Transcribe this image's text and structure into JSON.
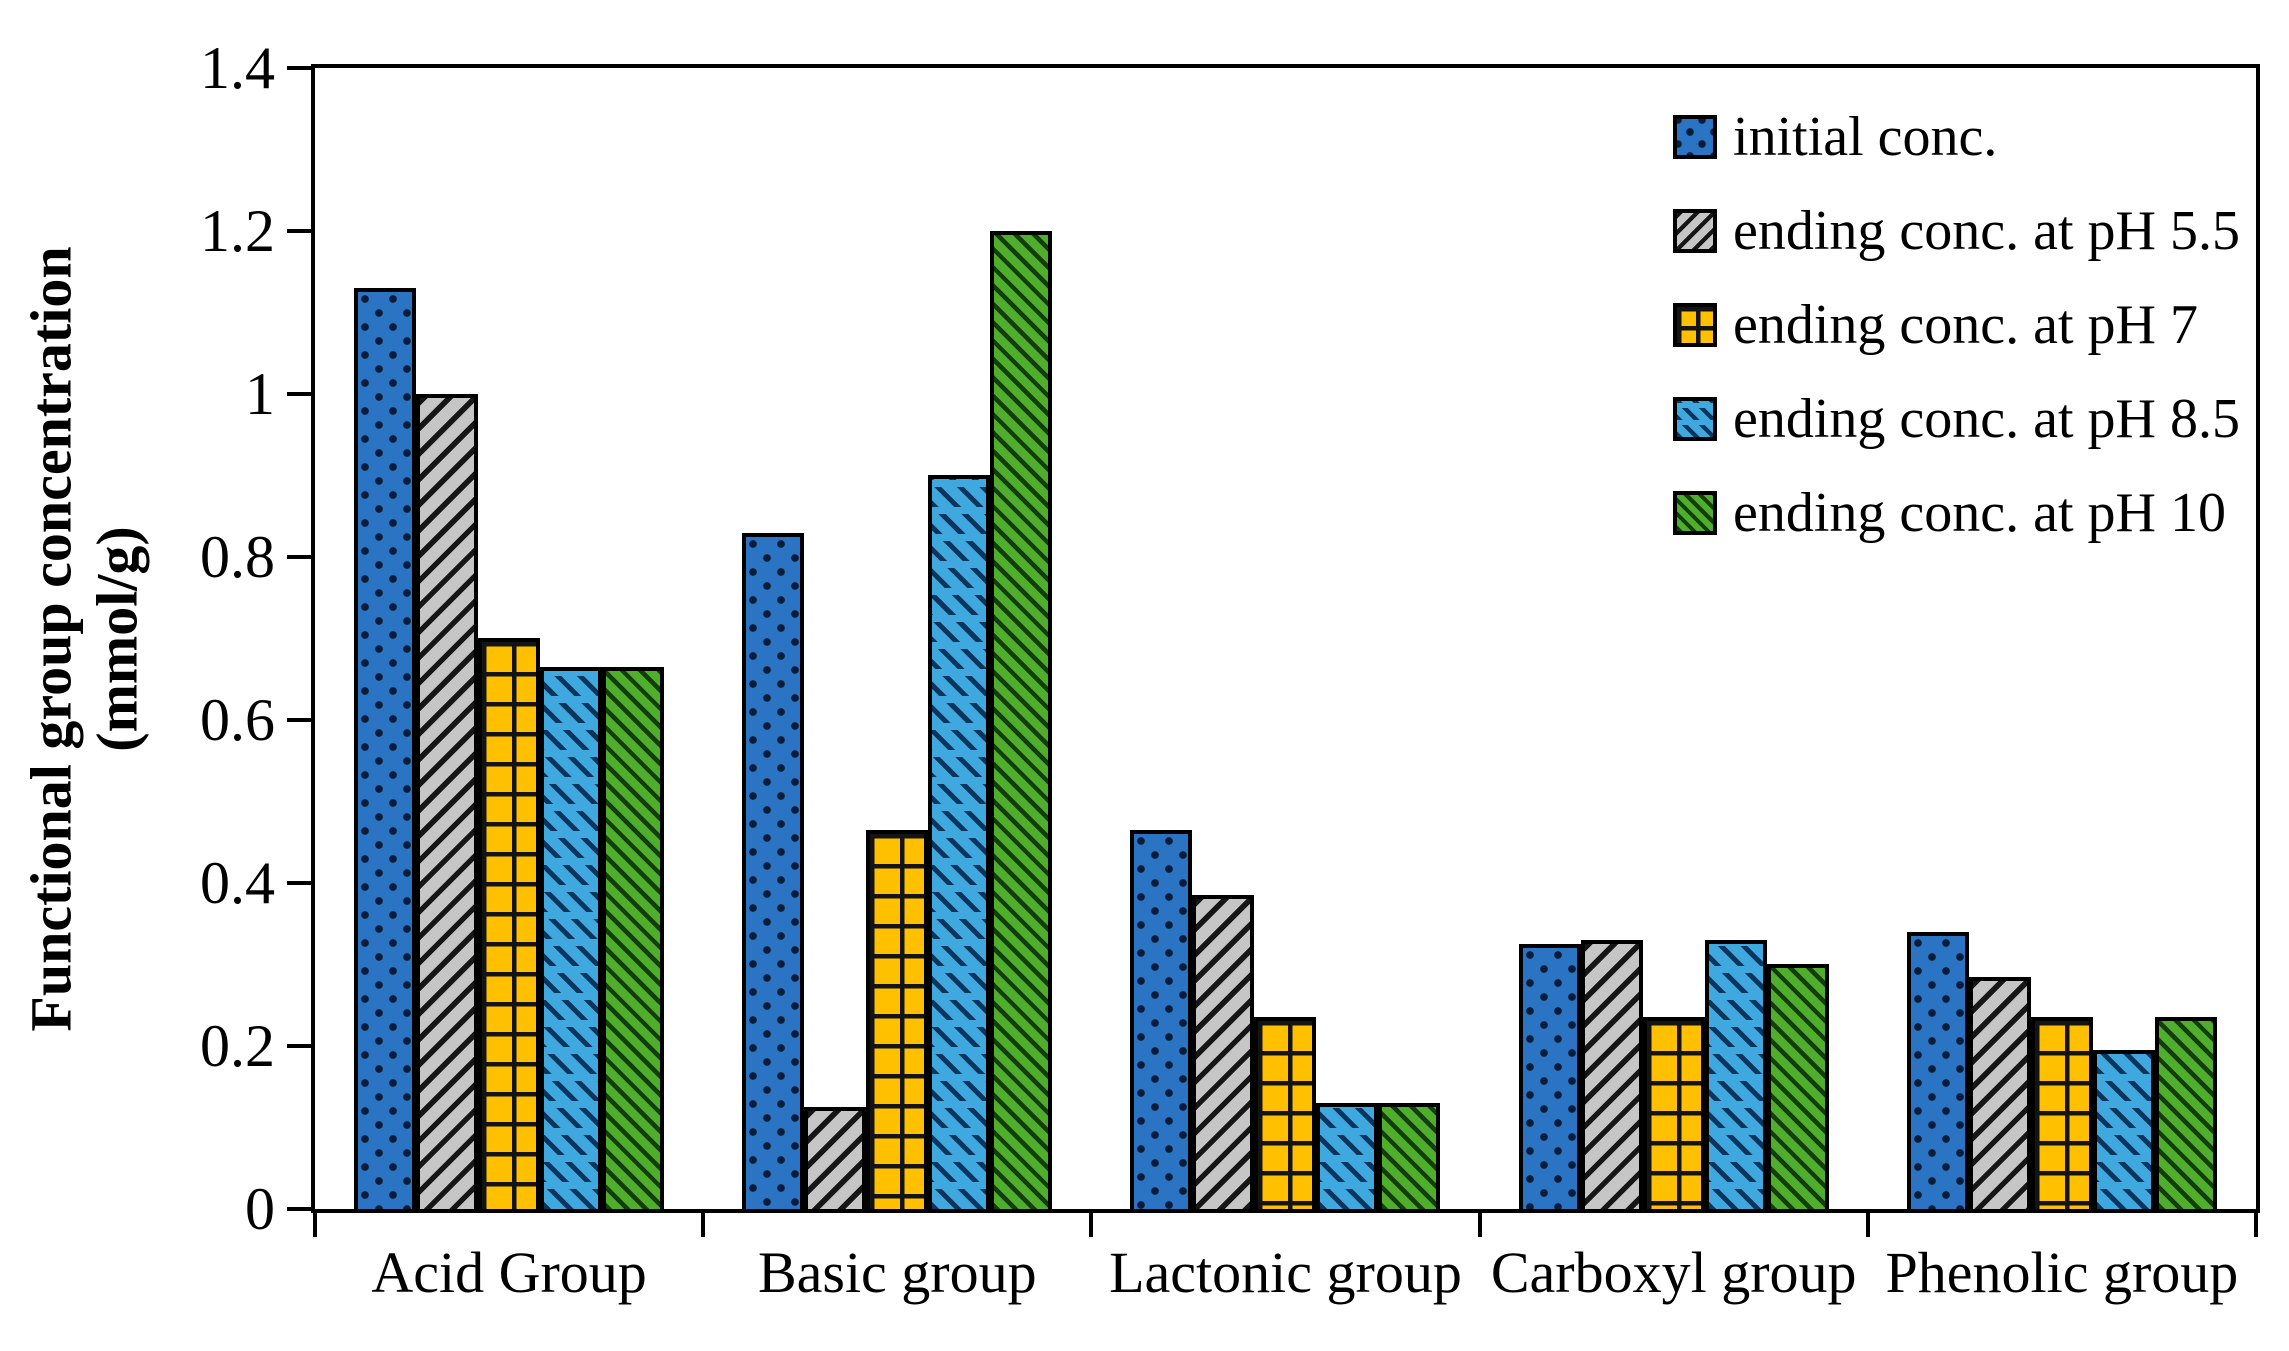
{
  "chart_data": {
    "type": "bar",
    "title": "",
    "ylabel_line1": "Functional group concentration",
    "ylabel_line2": "(mmol/g)",
    "xlabel": "",
    "categories": [
      "Acid Group",
      "Basic group",
      "Lactonic group",
      "Carboxyl group",
      "Phenolic group"
    ],
    "series": [
      {
        "name": "initial conc.",
        "color": "#2B74C4",
        "pattern_color": "#0A1C38",
        "pattern": "dots",
        "values": [
          1.13,
          0.83,
          0.465,
          0.325,
          0.34
        ]
      },
      {
        "name": "ending conc. at pH 5.5",
        "color": "#C6C6C6",
        "pattern_color": "#161616",
        "pattern": "diag-up",
        "values": [
          1.0,
          0.125,
          0.385,
          0.33,
          0.285
        ]
      },
      {
        "name": "ending conc. at pH 7",
        "color": "#FFC000",
        "pattern_color": "#141414",
        "pattern": "grid",
        "values": [
          0.7,
          0.465,
          0.235,
          0.235,
          0.235
        ]
      },
      {
        "name": "ending conc. at pH 8.5",
        "color": "#3FA8DF",
        "pattern_color": "#0B355C",
        "pattern": "dash-diag",
        "values": [
          0.665,
          0.9,
          0.13,
          0.33,
          0.195
        ]
      },
      {
        "name": "ending conc. at pH 10",
        "color": "#4FAE2C",
        "pattern_color": "#143D0C",
        "pattern": "diag-down",
        "values": [
          0.665,
          1.2,
          0.13,
          0.3,
          0.235
        ]
      }
    ],
    "ylim": [
      0,
      1.4
    ],
    "y_ticks": [
      {
        "value": 1.4,
        "label": "1.4"
      },
      {
        "value": 1.2,
        "label": "1.2"
      },
      {
        "value": 1.0,
        "label": "1"
      },
      {
        "value": 0.8,
        "label": "0.8"
      },
      {
        "value": 0.6,
        "label": "0.6"
      },
      {
        "value": 0.4,
        "label": "0.4"
      },
      {
        "value": 0.2,
        "label": "0.2"
      },
      {
        "value": 0.0,
        "label": "0"
      }
    ],
    "grid": "off",
    "legend_position": "top-right",
    "frame_color": "#000000",
    "background_color": "#ffffff"
  }
}
